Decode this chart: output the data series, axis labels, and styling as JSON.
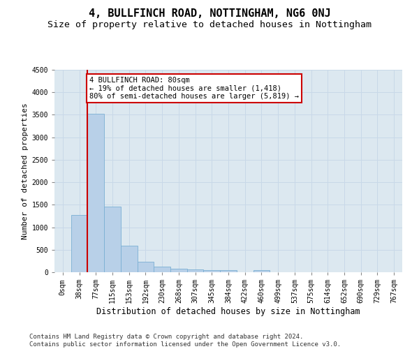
{
  "title": "4, BULLFINCH ROAD, NOTTINGHAM, NG6 0NJ",
  "subtitle": "Size of property relative to detached houses in Nottingham",
  "xlabel": "Distribution of detached houses by size in Nottingham",
  "ylabel": "Number of detached properties",
  "categories": [
    "0sqm",
    "38sqm",
    "77sqm",
    "115sqm",
    "153sqm",
    "192sqm",
    "230sqm",
    "268sqm",
    "307sqm",
    "345sqm",
    "384sqm",
    "422sqm",
    "460sqm",
    "499sqm",
    "537sqm",
    "575sqm",
    "614sqm",
    "652sqm",
    "690sqm",
    "729sqm",
    "767sqm"
  ],
  "values": [
    5,
    1270,
    3530,
    1460,
    590,
    230,
    120,
    80,
    55,
    40,
    50,
    0,
    40,
    0,
    0,
    0,
    0,
    0,
    0,
    0,
    0
  ],
  "bar_color": "#b8d0e8",
  "bar_edge_color": "#7bafd4",
  "vline_color": "#cc0000",
  "annotation_text": "4 BULLFINCH ROAD: 80sqm\n← 19% of detached houses are smaller (1,418)\n80% of semi-detached houses are larger (5,819) →",
  "annotation_box_color": "#ffffff",
  "annotation_box_edge": "#cc0000",
  "ylim": [
    0,
    4500
  ],
  "yticks": [
    0,
    500,
    1000,
    1500,
    2000,
    2500,
    3000,
    3500,
    4000,
    4500
  ],
  "grid_color": "#c8d8e8",
  "plot_bg_color": "#dce8f0",
  "footer_text": "Contains HM Land Registry data © Crown copyright and database right 2024.\nContains public sector information licensed under the Open Government Licence v3.0.",
  "title_fontsize": 11,
  "subtitle_fontsize": 9.5,
  "xlabel_fontsize": 8.5,
  "ylabel_fontsize": 8,
  "tick_fontsize": 7,
  "annotation_fontsize": 7.5,
  "footer_fontsize": 6.5
}
